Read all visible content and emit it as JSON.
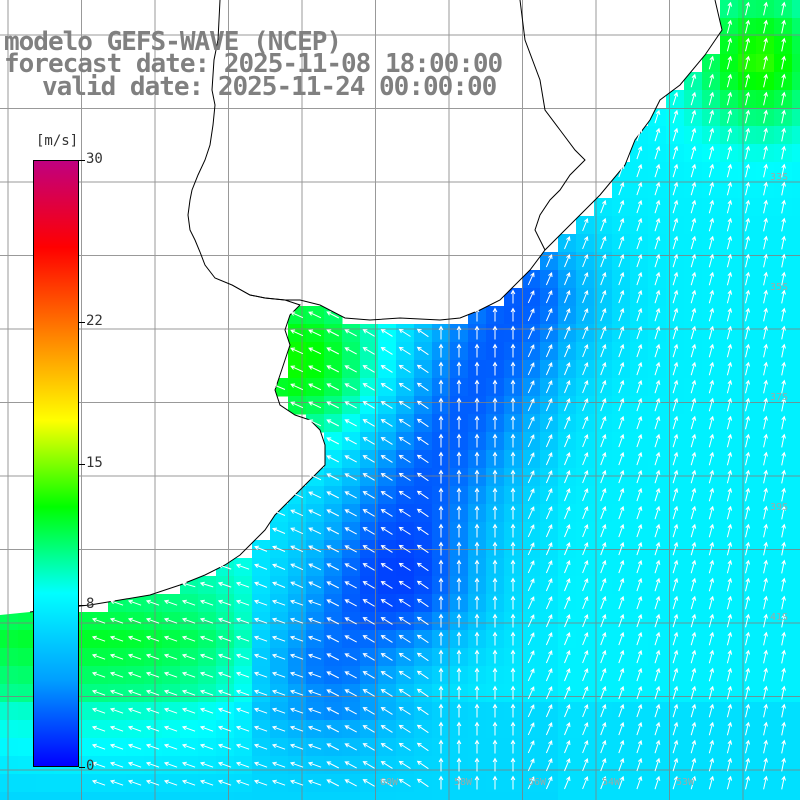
{
  "header": {
    "line1": "modelo GEFS-WAVE (NCEP)",
    "line2": "forecast date: 2025-11-08 18:00:00",
    "line3": "valid date: 2025-11-24 00:00:00"
  },
  "colorbar": {
    "unit": "[m/s]",
    "ticks": [
      "30",
      "22",
      "15",
      "8",
      "0"
    ],
    "tick_values": [
      30,
      22,
      15,
      8,
      0
    ],
    "min": 0,
    "max": 30,
    "colors": [
      "#0000ff",
      "#00a0ff",
      "#00ffff",
      "#00ff00",
      "#ffff00",
      "#ff8000",
      "#ff0000",
      "#c00080"
    ]
  },
  "map": {
    "variable": "wind speed (m/s) with direction arrows",
    "land_color": "#ffffff",
    "coastline_color": "#000000",
    "grid_color": "#808080",
    "arrow_color": "#ffffff",
    "lat_labels": [
      "33S",
      "35S",
      "37S",
      "39S",
      "41S"
    ],
    "lon_labels": [
      "60W",
      "58W",
      "56W",
      "54W",
      "53W"
    ]
  }
}
